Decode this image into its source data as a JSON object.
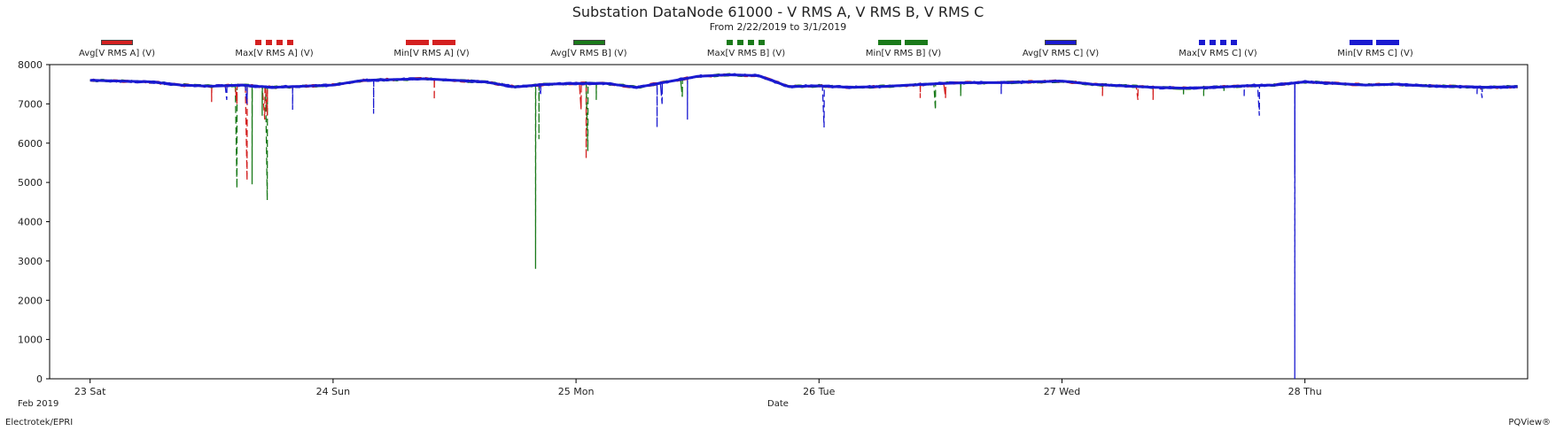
{
  "title": "Substation DataNode 61000 - V RMS A, V RMS B, V RMS C",
  "subtitle": "From 2/22/2019 to 3/1/2019",
  "month_label": "Feb 2019",
  "footer_left": "Electrotek/EPRI",
  "footer_right": "PQView®",
  "colors": {
    "phase_a": "#d42020",
    "phase_b": "#1a7a1a",
    "phase_c": "#1a1ad0"
  },
  "chart_data": {
    "type": "line",
    "title": "Substation DataNode 61000 - V RMS A, V RMS B, V RMS C",
    "subtitle": "From 2/22/2019 to 3/1/2019",
    "xlabel": "Date",
    "ylabel": "",
    "xlim": [
      "2019-02-22T20:00",
      "2019-02-28T22:00"
    ],
    "ylim": [
      0,
      8000
    ],
    "y_ticks": [
      0,
      1000,
      2000,
      3000,
      4000,
      5000,
      6000,
      7000,
      8000
    ],
    "x_ticks": [
      {
        "x": "2019-02-23",
        "label": "23 Sat"
      },
      {
        "x": "2019-02-24",
        "label": "24 Sun"
      },
      {
        "x": "2019-02-25",
        "label": "25 Mon"
      },
      {
        "x": "2019-02-26",
        "label": "26 Tue"
      },
      {
        "x": "2019-02-27",
        "label": "27 Wed"
      },
      {
        "x": "2019-02-28",
        "label": "28 Thu"
      }
    ],
    "grid": false,
    "legend_position": "top",
    "baseline": [
      [
        "2019-02-23T00:00",
        7600
      ],
      [
        "2019-02-23T03:00",
        7580
      ],
      [
        "2019-02-23T06:00",
        7560
      ],
      [
        "2019-02-23T09:00",
        7480
      ],
      [
        "2019-02-23T12:00",
        7450
      ],
      [
        "2019-02-23T15:00",
        7480
      ],
      [
        "2019-02-23T18:00",
        7420
      ],
      [
        "2019-02-23T21:00",
        7450
      ],
      [
        "2019-02-24T00:00",
        7480
      ],
      [
        "2019-02-24T03:00",
        7600
      ],
      [
        "2019-02-24T06:00",
        7620
      ],
      [
        "2019-02-24T09:00",
        7640
      ],
      [
        "2019-02-24T12:00",
        7600
      ],
      [
        "2019-02-24T15:00",
        7560
      ],
      [
        "2019-02-24T18:00",
        7430
      ],
      [
        "2019-02-24T21:00",
        7500
      ],
      [
        "2019-02-25T00:00",
        7520
      ],
      [
        "2019-02-25T03:00",
        7520
      ],
      [
        "2019-02-25T06:00",
        7420
      ],
      [
        "2019-02-25T09:00",
        7560
      ],
      [
        "2019-02-25T12:00",
        7700
      ],
      [
        "2019-02-25T15:00",
        7740
      ],
      [
        "2019-02-25T18:00",
        7720
      ],
      [
        "2019-02-25T21:00",
        7440
      ],
      [
        "2019-02-26T00:00",
        7460
      ],
      [
        "2019-02-26T03:00",
        7420
      ],
      [
        "2019-02-26T06:00",
        7440
      ],
      [
        "2019-02-26T09:00",
        7480
      ],
      [
        "2019-02-26T12:00",
        7520
      ],
      [
        "2019-02-26T15:00",
        7540
      ],
      [
        "2019-02-26T18:00",
        7540
      ],
      [
        "2019-02-26T21:00",
        7560
      ],
      [
        "2019-02-27T00:00",
        7580
      ],
      [
        "2019-02-27T03:00",
        7500
      ],
      [
        "2019-02-27T06:00",
        7460
      ],
      [
        "2019-02-27T09:00",
        7420
      ],
      [
        "2019-02-27T12:00",
        7400
      ],
      [
        "2019-02-27T15:00",
        7420
      ],
      [
        "2019-02-27T18:00",
        7460
      ],
      [
        "2019-02-27T21:00",
        7480
      ],
      [
        "2019-02-28T00:00",
        7560
      ],
      [
        "2019-02-28T03:00",
        7520
      ],
      [
        "2019-02-28T06:00",
        7480
      ],
      [
        "2019-02-28T09:00",
        7500
      ],
      [
        "2019-02-28T12:00",
        7460
      ],
      [
        "2019-02-28T15:00",
        7440
      ],
      [
        "2019-02-28T18:00",
        7420
      ],
      [
        "2019-02-28T21:00",
        7440
      ]
    ],
    "series": [
      {
        "name": "Avg[V RMS A] (V)",
        "phase": "A",
        "stat": "avg",
        "dips": []
      },
      {
        "name": "Max[V RMS A] (V)",
        "phase": "A",
        "stat": "max",
        "dips": [
          [
            "2019-02-23T12:00",
            7050
          ],
          [
            "2019-02-23T15:30",
            5050
          ],
          [
            "2019-02-23T17:15",
            6600
          ],
          [
            "2019-02-24T10:00",
            7100
          ],
          [
            "2019-02-25T01:00",
            5600
          ],
          [
            "2019-02-26T10:00",
            7150
          ],
          [
            "2019-02-27T07:30",
            7100
          ],
          [
            "2019-02-27T23:00",
            7380
          ]
        ]
      },
      {
        "name": "Min[V RMS A] (V)",
        "phase": "A",
        "stat": "min",
        "dips": [
          [
            "2019-02-23T14:30",
            7000
          ],
          [
            "2019-02-23T17:30",
            6700
          ],
          [
            "2019-02-25T00:30",
            6850
          ],
          [
            "2019-02-26T12:30",
            7150
          ],
          [
            "2019-02-27T04:00",
            7200
          ],
          [
            "2019-02-27T09:00",
            7100
          ]
        ]
      },
      {
        "name": "Avg[V RMS B] (V)",
        "phase": "B",
        "stat": "avg",
        "dips": []
      },
      {
        "name": "Max[V RMS B] (V)",
        "phase": "B",
        "stat": "max",
        "dips": [
          [
            "2019-02-23T14:30",
            4850
          ],
          [
            "2019-02-23T17:30",
            4550
          ],
          [
            "2019-02-24T20:00",
            2800
          ],
          [
            "2019-02-24T20:20",
            6100
          ],
          [
            "2019-02-25T01:10",
            5800
          ],
          [
            "2019-02-26T11:30",
            6850
          ],
          [
            "2019-02-27T12:00",
            7200
          ],
          [
            "2019-02-27T14:00",
            7200
          ]
        ]
      },
      {
        "name": "Min[V RMS B] (V)",
        "phase": "B",
        "stat": "min",
        "dips": [
          [
            "2019-02-23T16:00",
            4950
          ],
          [
            "2019-02-23T17:00",
            6700
          ],
          [
            "2019-02-25T02:00",
            7100
          ],
          [
            "2019-02-25T10:30",
            7180
          ],
          [
            "2019-02-26T14:00",
            7200
          ],
          [
            "2019-02-27T16:00",
            7300
          ]
        ]
      },
      {
        "name": "Avg[V RMS C] (V)",
        "phase": "C",
        "stat": "avg",
        "dips": []
      },
      {
        "name": "Max[V RMS C] (V)",
        "phase": "C",
        "stat": "max",
        "dips": [
          [
            "2019-02-23T13:30",
            7100
          ],
          [
            "2019-02-23T20:00",
            6850
          ],
          [
            "2019-02-24T04:00",
            6750
          ],
          [
            "2019-02-25T08:00",
            6400
          ],
          [
            "2019-02-25T11:00",
            6600
          ],
          [
            "2019-02-26T00:30",
            6400
          ],
          [
            "2019-02-27T19:30",
            6700
          ],
          [
            "2019-02-27T23:00",
            0
          ],
          [
            "2019-02-28T17:30",
            7150
          ]
        ]
      },
      {
        "name": "Min[V RMS C] (V)",
        "phase": "C",
        "stat": "min",
        "dips": [
          [
            "2019-02-23T15:30",
            7000
          ],
          [
            "2019-02-24T20:30",
            7250
          ],
          [
            "2019-02-25T08:30",
            7000
          ],
          [
            "2019-02-26T18:00",
            7250
          ],
          [
            "2019-02-27T18:00",
            7200
          ],
          [
            "2019-02-27T23:00",
            5200
          ],
          [
            "2019-02-28T17:00",
            7250
          ]
        ]
      }
    ]
  }
}
